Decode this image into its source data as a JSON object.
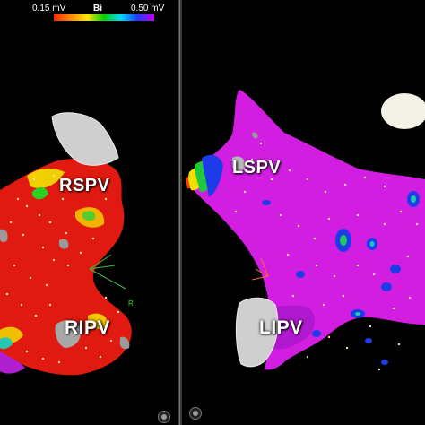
{
  "scale": {
    "min_label": "0.15 mV",
    "type_label": "Bi",
    "max_label": "0.50 mV",
    "colors": [
      "#ff2a00",
      "#ff8a00",
      "#ffe600",
      "#00d200",
      "#00d8ff",
      "#1e3cff",
      "#c000ff"
    ]
  },
  "left_panel": {
    "labels": {
      "superior": "RSPV",
      "inferior": "RIPV"
    },
    "axis_marker": "R",
    "dominant_color": "#e01a10"
  },
  "right_panel": {
    "labels": {
      "superior": "LSPV",
      "inferior": "LIPV"
    },
    "dominant_color": "#d21ee0"
  }
}
